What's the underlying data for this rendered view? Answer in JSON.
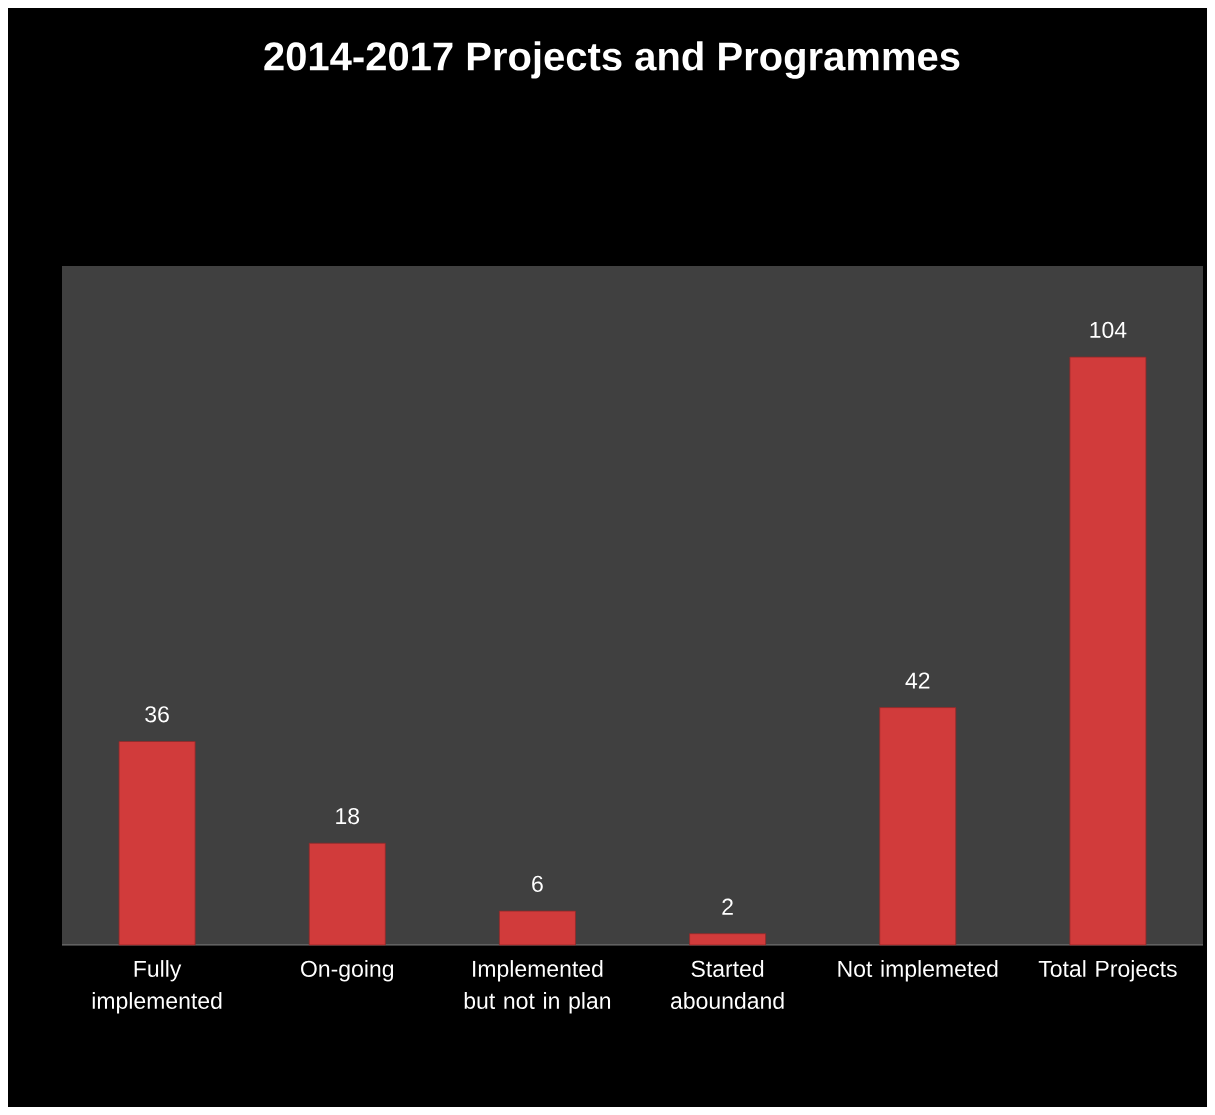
{
  "chart_data": {
    "type": "bar",
    "title": "2014-2017 Projects and Programmes",
    "categories": [
      "Fully implemented",
      "On-going",
      "Implemented but not in plan",
      "Started aboundand",
      "Not implemeted",
      "Total Projects"
    ],
    "values": [
      36,
      18,
      6,
      2,
      42,
      104
    ],
    "color": "#d13b3b",
    "data_labels": true
  }
}
